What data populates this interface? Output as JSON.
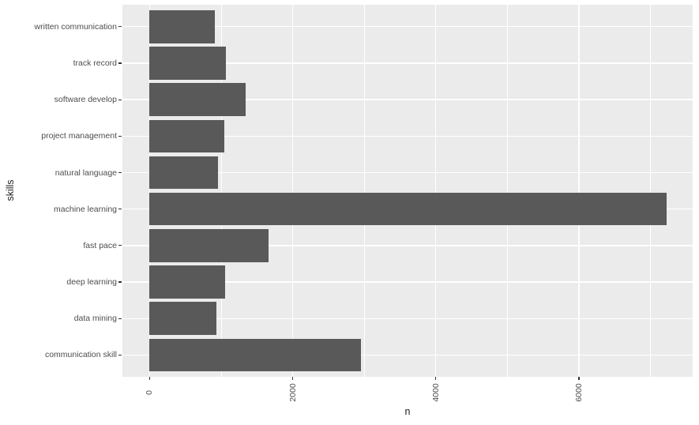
{
  "chart_data": {
    "type": "bar",
    "orientation": "horizontal",
    "title": "",
    "xlabel": "n",
    "ylabel": "skills",
    "categories": [
      "written communication",
      "track record",
      "software develop",
      "project management",
      "natural language",
      "machine learning",
      "fast pace",
      "deep learning",
      "data mining",
      "communication skill"
    ],
    "values": [
      915,
      1070,
      1340,
      1040,
      955,
      7230,
      1665,
      1055,
      930,
      2950
    ],
    "xlim": [
      0,
      7600
    ],
    "x_tick_values": [
      0,
      2000,
      4000,
      6000
    ],
    "x_tick_labels": [
      "0",
      "2000",
      "4000",
      "6000"
    ],
    "x_minor_tick_values": [
      1000,
      3000,
      5000,
      7000
    ],
    "x_tick_label_rotation_deg": 90,
    "grid": "white major and minor vertical lines, white major horizontal lines on gray panel",
    "legend": "none",
    "style": {
      "bar_color": "#595959",
      "panel_background": "#EBEBEB",
      "gridline_color": "#FFFFFF",
      "axis_text_color": "#4D4D4D",
      "axis_title_color": "#1A1A1A",
      "tick_mark_color": "#333333",
      "page_background": "#FFFFFF"
    }
  }
}
